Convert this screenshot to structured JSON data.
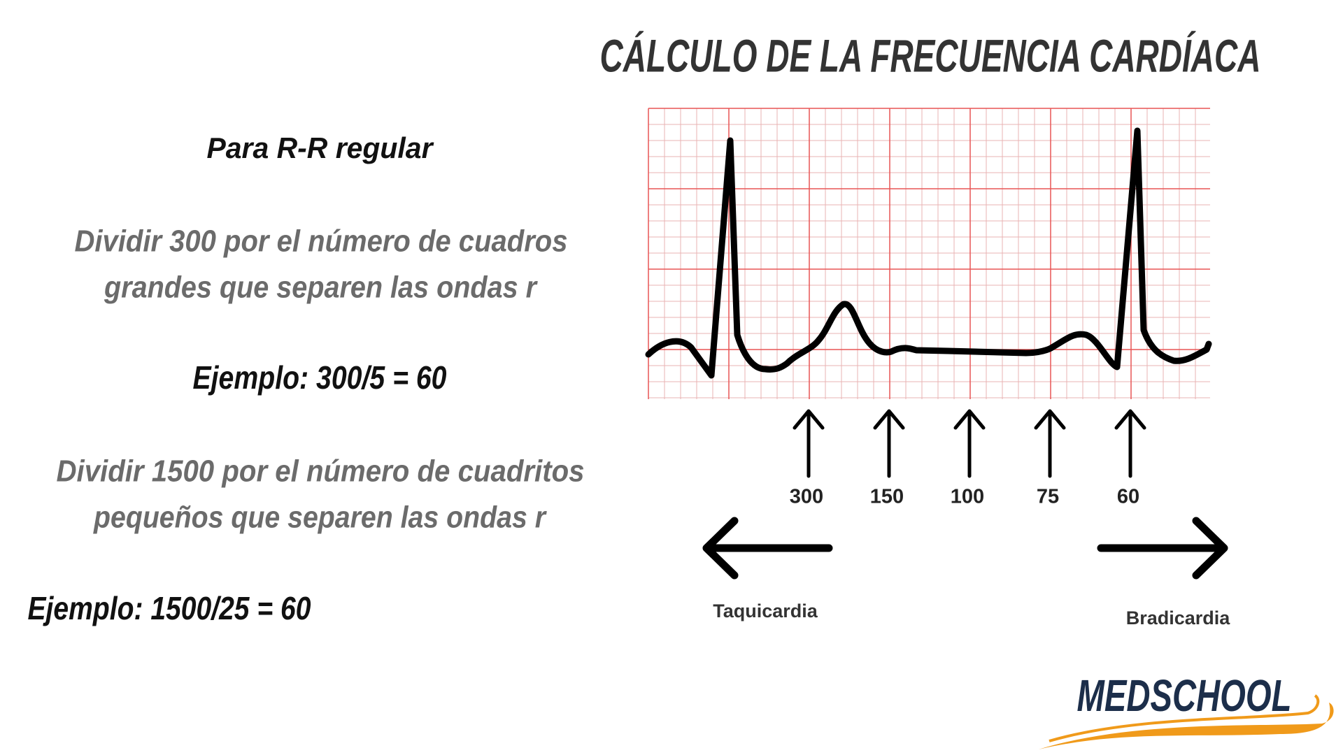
{
  "title": "CÁLCULO DE LA FRECUENCIA CARDÍACA",
  "left": {
    "heading": "Para R-R regular",
    "method1": [
      "Dividir 300 por el número de cuadros",
      "grandes que separen las ondas r"
    ],
    "example1": "Ejemplo: 300/5 = 60",
    "method2": [
      "Dividir 1500 por el número de cuadritos",
      "pequeños que separen las ondas r"
    ],
    "example2": "Ejemplo: 1500/25 = 60"
  },
  "diagram": {
    "markers": [
      "300",
      "150",
      "100",
      "75",
      "60"
    ],
    "left_label": "Taquicardia",
    "right_label": "Bradicardia"
  },
  "logo": "MEDSCHOOL"
}
